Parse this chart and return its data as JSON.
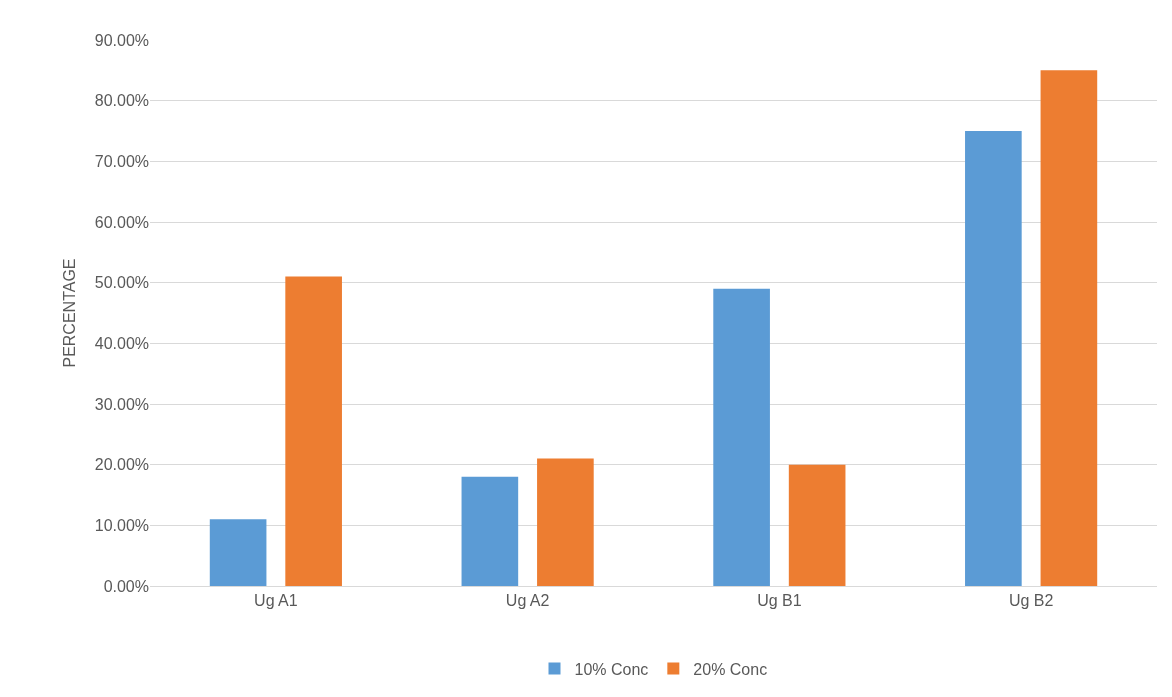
{
  "chart_data": {
    "type": "bar",
    "ylabel": "PERCENTAGE",
    "categories": [
      "Ug A1",
      "Ug A2",
      "Ug B1",
      "Ug B2"
    ],
    "series": [
      {
        "name": "10% Conc",
        "color": "#5b9bd5",
        "values": [
          11,
          18,
          49,
          75
        ]
      },
      {
        "name": "20% Conc",
        "color": "#ed7d31",
        "values": [
          51,
          21,
          20,
          85
        ]
      }
    ],
    "ylim": [
      0,
      90
    ],
    "yticks": [
      {
        "value": 0,
        "label": "0.00%"
      },
      {
        "value": 10,
        "label": "10.00%"
      },
      {
        "value": 20,
        "label": "20.00%"
      },
      {
        "value": 30,
        "label": "30.00%"
      },
      {
        "value": 40,
        "label": "40.00%"
      },
      {
        "value": 50,
        "label": "50.00%"
      },
      {
        "value": 60,
        "label": "60.00%"
      },
      {
        "value": 70,
        "label": "70.00%"
      },
      {
        "value": 80,
        "label": "80.00%"
      },
      {
        "value": 90,
        "label": "90.00%"
      }
    ],
    "grid": "y",
    "legend": "bottom"
  }
}
